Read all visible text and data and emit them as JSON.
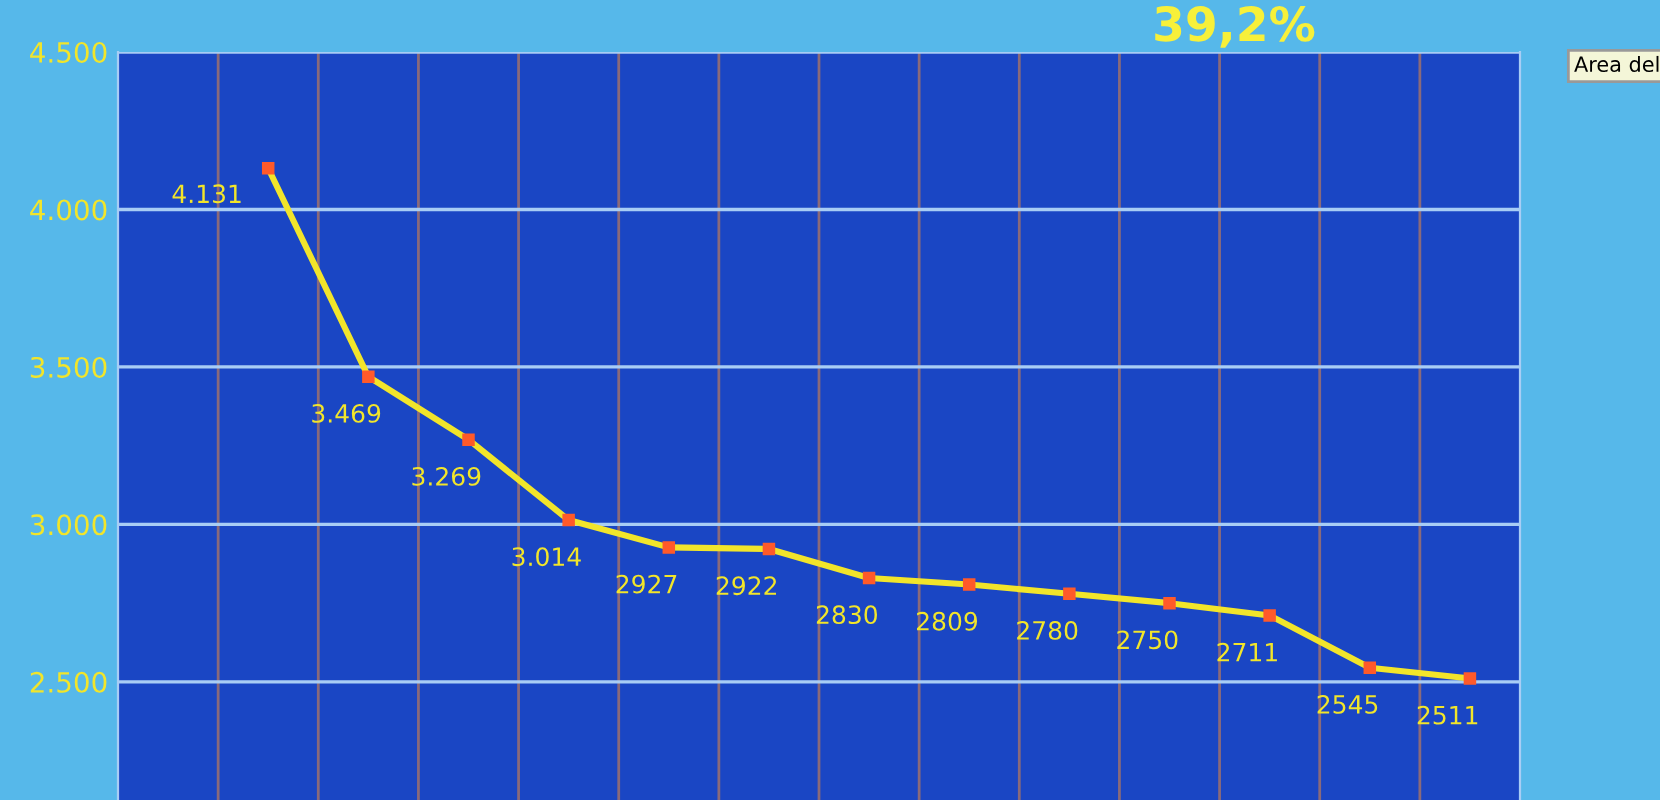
{
  "chart_data": {
    "type": "line",
    "categories": [
      null,
      null,
      null,
      null,
      null,
      null,
      null,
      null,
      null,
      null,
      null,
      null,
      null,
      null
    ],
    "series": [
      {
        "color": "#f2e52a",
        "values": [
          null,
          4131,
          3469,
          3269,
          3014,
          2927,
          2922,
          2830,
          2809,
          2780,
          2750,
          2711,
          2545,
          2511
        ],
        "value_labels": [
          null,
          "4.131",
          "3.469",
          "3.269",
          "3.014",
          "2927",
          "2922",
          "2830",
          "2809",
          "2780",
          "2750",
          "2711",
          "2545",
          "2511"
        ]
      }
    ],
    "ylim": [
      2125,
      4500
    ],
    "yticks": [
      {
        "value": 2500,
        "label": "2.500"
      },
      {
        "value": 3000,
        "label": "3.000"
      },
      {
        "value": 3500,
        "label": "3.500"
      },
      {
        "value": 4000,
        "label": "4.000"
      },
      {
        "value": 4500,
        "label": "4.500"
      }
    ],
    "annotations": [
      "39,2%",
      "Area del"
    ],
    "grid": true,
    "marker": "square",
    "line_style": "solid",
    "legend": false
  }
}
